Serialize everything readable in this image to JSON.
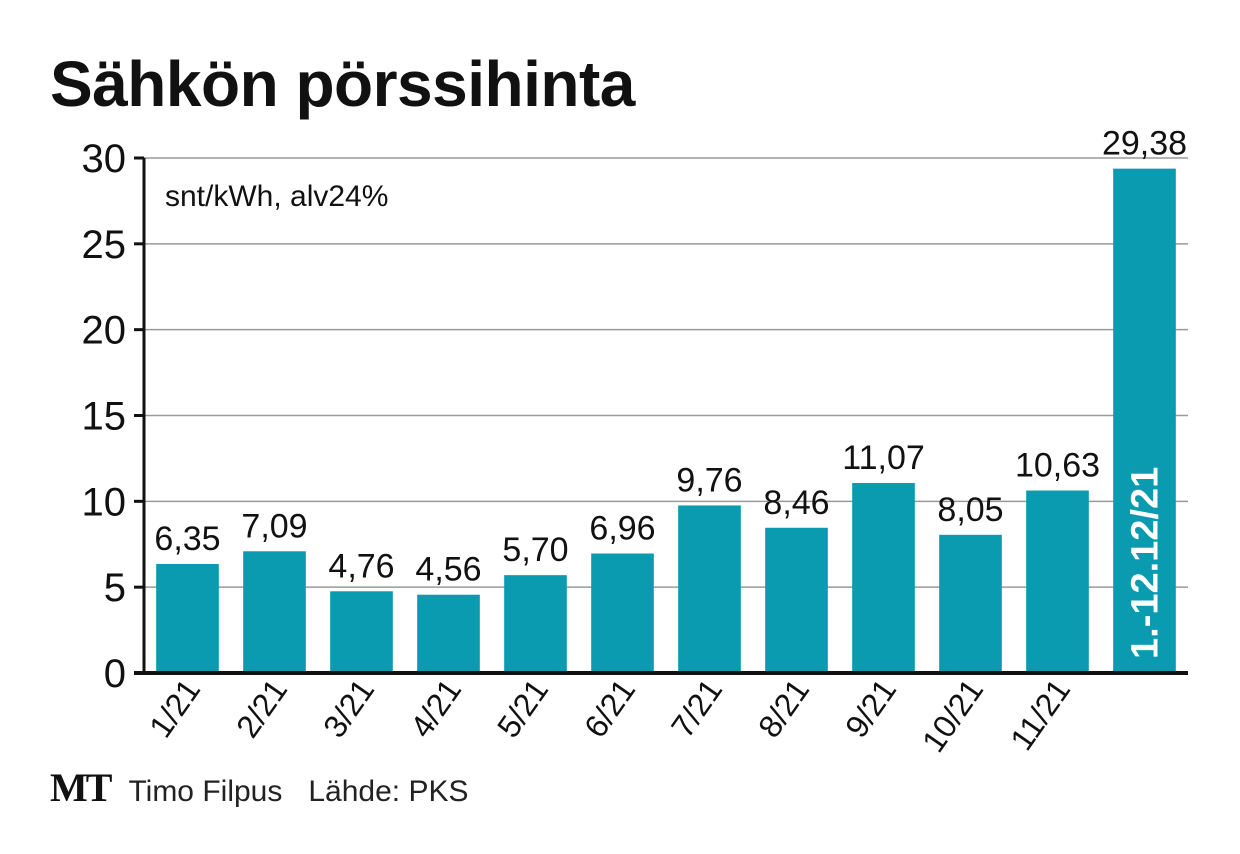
{
  "chart_data": {
    "type": "bar",
    "title": "Sähkön pörssihinta",
    "unit_label": "snt/kWh, alv24%",
    "categories": [
      "1/21",
      "2/21",
      "3/21",
      "4/21",
      "5/21",
      "6/21",
      "7/21",
      "8/21",
      "9/21",
      "10/21",
      "11/21",
      "1.-12.12/21"
    ],
    "values": [
      6.35,
      7.09,
      4.76,
      4.56,
      5.7,
      6.96,
      9.76,
      8.46,
      11.07,
      8.05,
      10.63,
      29.38
    ],
    "value_labels": [
      "6,35",
      "7,09",
      "4,76",
      "4,56",
      "5,70",
      "6,96",
      "9,76",
      "8,46",
      "11,07",
      "8,05",
      "10,63",
      "29,38"
    ],
    "y_ticks": [
      0,
      5,
      10,
      15,
      20,
      25,
      30
    ],
    "ylim": [
      0,
      30
    ],
    "grid": true,
    "bar_color": "#0a9bb0",
    "last_category_label_inside_bar": true
  },
  "footer": {
    "logo": "MT",
    "author": "Timo Filpus",
    "source": "Lähde: PKS"
  }
}
